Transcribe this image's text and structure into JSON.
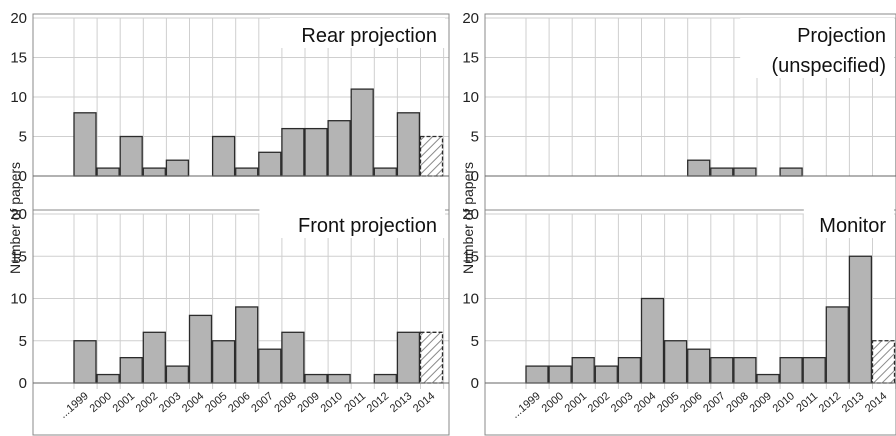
{
  "chart_data": {
    "type": "bar",
    "ylabel": "Number of papers",
    "ylim": [
      0,
      20
    ],
    "yticks": [
      0,
      5,
      10,
      15,
      20
    ],
    "categories": [
      "...1999",
      "2000",
      "2001",
      "2002",
      "2003",
      "2004",
      "2005",
      "2006",
      "2007",
      "2008",
      "2009",
      "2010",
      "2011",
      "2012",
      "2013",
      "2014"
    ],
    "bar_color": "#b4b4b4",
    "hatched_category": "2014",
    "panels": [
      {
        "title": [
          "Rear projection"
        ],
        "values": [
          8,
          1,
          5,
          1,
          2,
          0,
          5,
          1,
          3,
          6,
          6,
          7,
          11,
          1,
          8,
          5
        ]
      },
      {
        "title": [
          "Projection",
          "(unspecified)"
        ],
        "values": [
          0,
          0,
          0,
          0,
          0,
          0,
          0,
          2,
          1,
          1,
          0,
          1,
          0,
          0,
          0,
          0
        ]
      },
      {
        "title": [
          "Front projection"
        ],
        "values": [
          5,
          1,
          3,
          6,
          2,
          8,
          5,
          9,
          4,
          6,
          1,
          1,
          0,
          1,
          6,
          6
        ]
      },
      {
        "title": [
          "Monitor"
        ],
        "values": [
          2,
          2,
          3,
          2,
          3,
          10,
          5,
          4,
          3,
          3,
          1,
          3,
          3,
          9,
          15,
          5
        ]
      }
    ]
  }
}
